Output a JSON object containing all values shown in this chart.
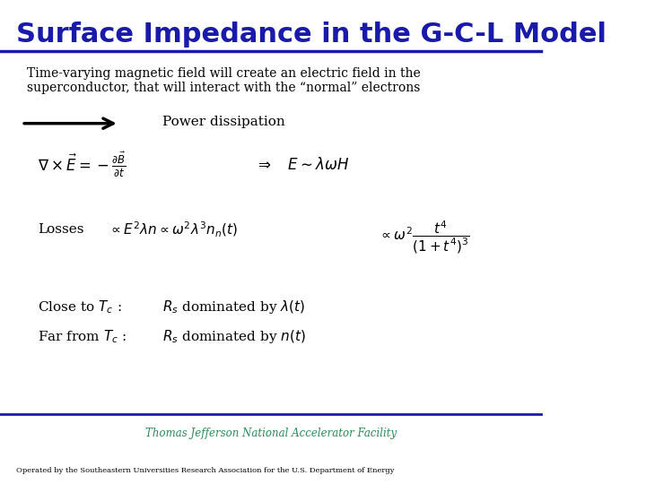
{
  "title": "Surface Impedance in the G-C-L Model",
  "title_color": "#1a1aaa",
  "title_fontsize": 22,
  "bg_color": "#ffffff",
  "header_line_color": "#1a1aaa",
  "body_text_color": "#000000",
  "footer_text_color": "#2e8b57",
  "subtitle": "Time-varying magnetic field will create an electric field in the\nsuperconductor, that will interact with the “normal” electrons",
  "power_text": "Power dissipation",
  "eq1": "$\\nabla \\times \\vec{E} = -\\frac{\\partial \\vec{B}}{\\partial t}$",
  "eq1b": "$\\Rightarrow \\quad E \\sim \\lambda \\omega H$",
  "eq2_label": "Losses",
  "eq2": "$\\propto E^2 \\lambda n \\propto \\omega^2 \\lambda^3 n_n(t)$",
  "eq2b": "$\\propto \\omega^2 \\dfrac{t^4}{\\left(1 + t^4\\right)^3}$",
  "close_tc": "Close to $T_c$ :",
  "close_tc_eq": "$R_s$ dominated by $\\lambda(t)$",
  "far_tc": "Far from $T_c$ :",
  "far_tc_eq": "$R_s$ dominated by $n(t)$",
  "footer_center": "Thomas Jefferson National Accelerator Facility",
  "footer_bottom": "Operated by the Southeastern Universities Research Association for the U.S. Department of Energy"
}
